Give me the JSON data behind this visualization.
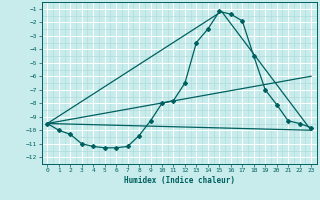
{
  "title": "",
  "xlabel": "Humidex (Indice chaleur)",
  "bg_color": "#c8ecec",
  "line_color": "#006060",
  "grid_major_color": "#ffffff",
  "grid_minor_color": "#aad8d8",
  "xlim": [
    -0.5,
    23.5
  ],
  "ylim": [
    -12.5,
    -0.5
  ],
  "xticks": [
    0,
    1,
    2,
    3,
    4,
    5,
    6,
    7,
    8,
    9,
    10,
    11,
    12,
    13,
    14,
    15,
    16,
    17,
    18,
    19,
    20,
    21,
    22,
    23
  ],
  "yticks": [
    -12,
    -11,
    -10,
    -9,
    -8,
    -7,
    -6,
    -5,
    -4,
    -3,
    -2,
    -1
  ],
  "series1_x": [
    0,
    1,
    2,
    3,
    4,
    5,
    6,
    7,
    8,
    9,
    10,
    11,
    12,
    13,
    14,
    15,
    16,
    17,
    18,
    19,
    20,
    21,
    22,
    23
  ],
  "series1_y": [
    -9.5,
    -10.0,
    -10.3,
    -11.0,
    -11.2,
    -11.3,
    -11.3,
    -11.2,
    -10.4,
    -9.3,
    -8.0,
    -7.8,
    -6.5,
    -3.5,
    -2.5,
    -1.2,
    -1.4,
    -1.9,
    -4.5,
    -7.0,
    -8.1,
    -9.3,
    -9.5,
    -9.8
  ],
  "line2_x": [
    0,
    23
  ],
  "line2_y": [
    -9.5,
    -10.0
  ],
  "line3_x": [
    0,
    23
  ],
  "line3_y": [
    -9.5,
    -6.0
  ],
  "line4_x": [
    0,
    15.2,
    23
  ],
  "line4_y": [
    -9.5,
    -1.2,
    -10.0
  ]
}
